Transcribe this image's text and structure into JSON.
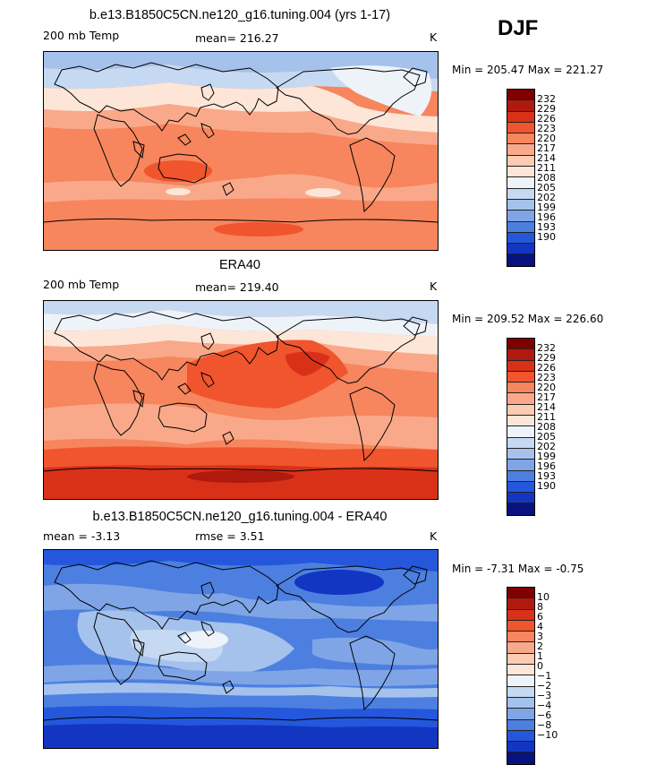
{
  "season": "DJF",
  "colors": [
    "#7f0000",
    "#b01a0e",
    "#d93118",
    "#f0552e",
    "#f7855d",
    "#f9a98a",
    "#fccbb3",
    "#fde6d7",
    "#eef3fa",
    "#c6d9f2",
    "#a4c2ec",
    "#7fa5e6",
    "#4c7fe0",
    "#2457dc",
    "#1236c2",
    "#08127f"
  ],
  "panels": [
    {
      "title": "b.e13.B1850C5CN.ne120_g16.tuning.004 (yrs 1-17)",
      "left_label": "200 mb Temp",
      "center_label": "mean= 216.27",
      "units": "K",
      "minmax": "Min = 205.47 Max = 221.27",
      "levels": [
        "232",
        "229",
        "226",
        "223",
        "220",
        "217",
        "214",
        "211",
        "208",
        "205",
        "202",
        "199",
        "196",
        "193",
        "190"
      ]
    },
    {
      "title": "ERA40",
      "left_label": "200 mb Temp",
      "center_label": "mean= 219.40",
      "units": "K",
      "minmax": "Min = 209.52 Max = 226.60",
      "levels": [
        "232",
        "229",
        "226",
        "223",
        "220",
        "217",
        "214",
        "211",
        "208",
        "205",
        "202",
        "199",
        "196",
        "193",
        "190"
      ]
    },
    {
      "title": "b.e13.B1850C5CN.ne120_g16.tuning.004 - ERA40",
      "left_label": "mean =  -3.13",
      "center_label": "rmse =   3.51",
      "units": "K",
      "minmax": "Min =  -7.31 Max =  -0.75",
      "levels": [
        "10",
        "8",
        "6",
        "4",
        "3",
        "2",
        "1",
        "0",
        "−1",
        "−2",
        "−3",
        "−4",
        "−6",
        "−8",
        "−10"
      ]
    }
  ]
}
